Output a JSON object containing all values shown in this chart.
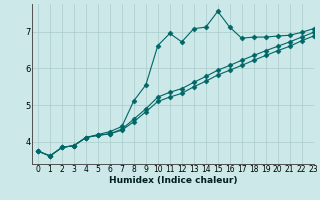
{
  "xlabel": "Humidex (Indice chaleur)",
  "bg_color": "#cce8e8",
  "line_color": "#006666",
  "grid_color": "#aacccc",
  "xlim": [
    -0.5,
    23
  ],
  "ylim": [
    3.4,
    7.75
  ],
  "yticks": [
    4,
    5,
    6,
    7
  ],
  "xticks": [
    0,
    1,
    2,
    3,
    4,
    5,
    6,
    7,
    8,
    9,
    10,
    11,
    12,
    13,
    14,
    15,
    16,
    17,
    18,
    19,
    20,
    21,
    22,
    23
  ],
  "line1_x": [
    0,
    1,
    2,
    3,
    4,
    5,
    6,
    7,
    8,
    9,
    10,
    11,
    12,
    13,
    14,
    15,
    16,
    17,
    18,
    19,
    20,
    21,
    22,
    23
  ],
  "line1_y": [
    3.75,
    3.62,
    3.85,
    3.9,
    4.12,
    4.2,
    4.28,
    4.42,
    5.12,
    5.55,
    6.62,
    6.95,
    6.72,
    7.08,
    7.12,
    7.55,
    7.12,
    6.82,
    6.85,
    6.85,
    6.88,
    6.9,
    6.98,
    7.08
  ],
  "line2_x": [
    0,
    1,
    2,
    3,
    4,
    5,
    6,
    7,
    8,
    9,
    10,
    11,
    12,
    13,
    14,
    15,
    16,
    17,
    18,
    19,
    20,
    21,
    22,
    23
  ],
  "line2_y": [
    3.75,
    3.62,
    3.85,
    3.9,
    4.12,
    4.18,
    4.22,
    4.35,
    4.62,
    4.9,
    5.22,
    5.35,
    5.45,
    5.62,
    5.78,
    5.95,
    6.08,
    6.22,
    6.35,
    6.48,
    6.6,
    6.72,
    6.85,
    6.98
  ],
  "line3_x": [
    0,
    1,
    2,
    3,
    4,
    5,
    6,
    7,
    8,
    9,
    10,
    11,
    12,
    13,
    14,
    15,
    16,
    17,
    18,
    19,
    20,
    21,
    22,
    23
  ],
  "line3_y": [
    3.75,
    3.62,
    3.85,
    3.9,
    4.12,
    4.18,
    4.22,
    4.32,
    4.55,
    4.82,
    5.1,
    5.22,
    5.32,
    5.5,
    5.65,
    5.82,
    5.95,
    6.08,
    6.22,
    6.35,
    6.48,
    6.6,
    6.75,
    6.88
  ]
}
